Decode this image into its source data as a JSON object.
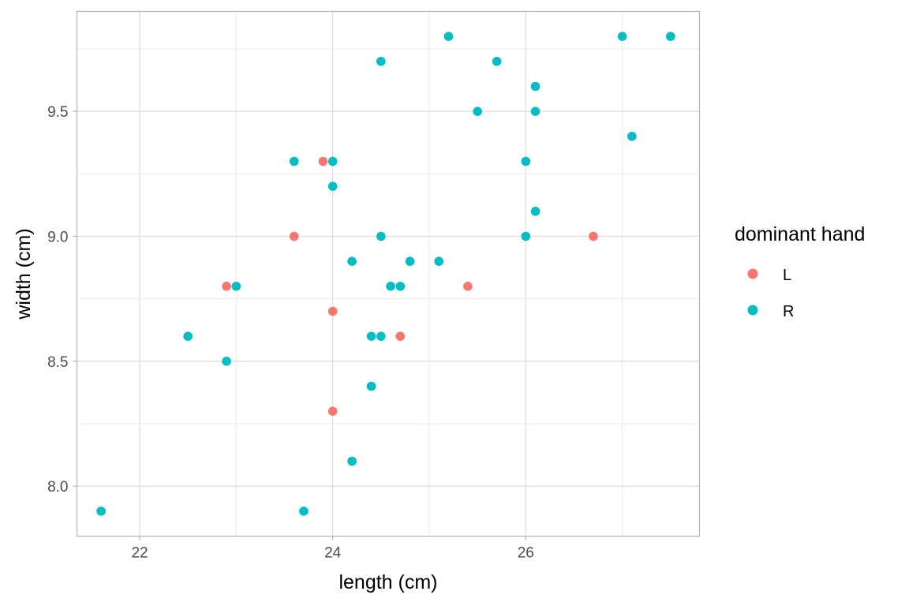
{
  "chart_data": {
    "type": "scatter",
    "title": "",
    "xlabel": "length (cm)",
    "ylabel": "width (cm)",
    "xlim": [
      21.35,
      27.8
    ],
    "ylim": [
      7.8,
      9.9
    ],
    "x_ticks": [
      22,
      24,
      26
    ],
    "x_tick_labels": [
      "22",
      "24",
      "26"
    ],
    "y_ticks": [
      8.0,
      8.5,
      9.0,
      9.5
    ],
    "y_tick_labels": [
      "8.0",
      "8.5",
      "9.0",
      "9.5"
    ],
    "grid": true,
    "legend": {
      "title": "dominant hand",
      "position": "right"
    },
    "series": [
      {
        "name": "L",
        "color": "#F8766D",
        "x": [
          23.9,
          23.6,
          22.9,
          24.0,
          24.7,
          24.0,
          25.4,
          26.7
        ],
        "y": [
          9.3,
          9.0,
          8.8,
          8.7,
          8.6,
          8.3,
          8.8,
          9.0
        ]
      },
      {
        "name": "R",
        "color": "#00BFC4",
        "x": [
          21.6,
          22.5,
          22.9,
          23.0,
          23.6,
          23.7,
          24.0,
          24.0,
          24.2,
          24.2,
          24.4,
          24.4,
          24.5,
          24.5,
          24.5,
          24.6,
          24.7,
          24.8,
          25.1,
          25.2,
          25.5,
          25.7,
          26.0,
          26.0,
          26.1,
          26.1,
          26.1,
          27.0,
          27.1,
          27.5
        ],
        "y": [
          7.9,
          8.6,
          8.5,
          8.8,
          9.3,
          7.9,
          9.3,
          9.2,
          8.9,
          8.1,
          8.6,
          8.4,
          9.7,
          9.0,
          8.6,
          8.8,
          8.8,
          8.9,
          8.9,
          9.8,
          9.5,
          9.7,
          9.3,
          9.0,
          9.6,
          9.5,
          9.1,
          9.8,
          9.4,
          9.8
        ]
      }
    ]
  }
}
